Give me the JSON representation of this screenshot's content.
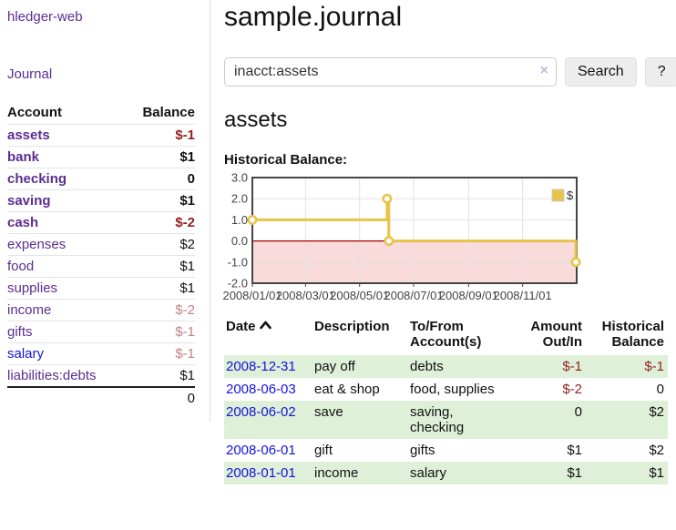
{
  "colors": {
    "purple_link": "#5c2d91",
    "blue_link": "#1414dd",
    "negative_strong": "#941f1f",
    "negative_muted": "#c08381",
    "row_green": "#dff0d8",
    "chart_line": "#e8c34a",
    "chart_negative_fill": "#f9dbdb",
    "chart_zero_line": "#a40000",
    "chart_grid": "#e2e2e2",
    "chart_border": "#454545"
  },
  "brand": "hledger-web",
  "sidebar": {
    "journal_link": "Journal",
    "account_header": "Account",
    "balance_header": "Balance",
    "accounts": [
      {
        "name": "assets",
        "level": 1,
        "bold": true,
        "balance": "$-1",
        "neg": "strong",
        "blue": false
      },
      {
        "name": "bank",
        "level": 2,
        "bold": true,
        "balance": "$1",
        "neg": "",
        "blue": false
      },
      {
        "name": "checking",
        "level": 3,
        "bold": true,
        "balance": "0",
        "neg": "",
        "blue": false
      },
      {
        "name": "saving",
        "level": 3,
        "bold": true,
        "balance": "$1",
        "neg": "",
        "blue": false
      },
      {
        "name": "cash",
        "level": 2,
        "bold": true,
        "balance": "$-2",
        "neg": "strong",
        "blue": false
      },
      {
        "name": "expenses",
        "level": 1,
        "bold": false,
        "balance": "$2",
        "neg": "",
        "blue": false
      },
      {
        "name": "food",
        "level": 2,
        "bold": false,
        "balance": "$1",
        "neg": "",
        "blue": false
      },
      {
        "name": "supplies",
        "level": 2,
        "bold": false,
        "balance": "$1",
        "neg": "",
        "blue": false
      },
      {
        "name": "income",
        "level": 1,
        "bold": false,
        "balance": "$-2",
        "neg": "muted",
        "blue": false
      },
      {
        "name": "gifts",
        "level": 2,
        "bold": false,
        "balance": "$-1",
        "neg": "muted",
        "blue": false
      },
      {
        "name": "salary",
        "level": 2,
        "bold": false,
        "balance": "$-1",
        "neg": "muted",
        "blue": true
      },
      {
        "name": "liabilities:debts",
        "level": 1,
        "bold": false,
        "balance": "$1",
        "neg": "",
        "blue": false
      }
    ],
    "total": "0"
  },
  "main": {
    "title": "sample.journal",
    "search": {
      "value": "inacct:assets",
      "clear": "×",
      "button_label": "Search",
      "help_label": "?"
    },
    "account_heading": "assets",
    "chart_title": "Historical Balance:"
  },
  "register": {
    "headers": {
      "date": "Date",
      "description": "Description",
      "accounts_1": "To/From",
      "accounts_2": "Account(s)",
      "amount_1": "Amount",
      "amount_2": "Out/In",
      "balance_1": "Historical",
      "balance_2": "Balance"
    },
    "rows": [
      {
        "date": "2008-12-31",
        "description": "pay off",
        "accounts": [
          "debts"
        ],
        "amount": "$-1",
        "amount_neg": true,
        "balance": "$-1",
        "balance_neg": true,
        "green": true
      },
      {
        "date": "2008-06-03",
        "description": "eat & shop",
        "accounts": [
          "food, supplies"
        ],
        "amount": "$-2",
        "amount_neg": true,
        "balance": "0",
        "balance_neg": false,
        "green": false
      },
      {
        "date": "2008-06-02",
        "description": "save",
        "accounts": [
          "saving,",
          "checking"
        ],
        "amount": "0",
        "amount_neg": false,
        "balance": "$2",
        "balance_neg": false,
        "green": true
      },
      {
        "date": "2008-06-01",
        "description": "gift",
        "accounts": [
          "gifts"
        ],
        "amount": "$1",
        "amount_neg": false,
        "balance": "$2",
        "balance_neg": false,
        "green": false
      },
      {
        "date": "2008-01-01",
        "description": "income",
        "accounts": [
          "salary"
        ],
        "amount": "$1",
        "amount_neg": false,
        "balance": "$1",
        "balance_neg": false,
        "green": true
      }
    ]
  },
  "chart_data": {
    "type": "line",
    "step": true,
    "title": "Historical Balance",
    "legend": [
      {
        "label": "$",
        "color": "#e8c34a"
      }
    ],
    "legend_position": "top-right",
    "grid": true,
    "negative_region_shaded": true,
    "x_range": [
      "2008-01-01",
      "2009-01-01"
    ],
    "ylim": [
      -2,
      3
    ],
    "y_ticks": [
      3.0,
      2.0,
      1.0,
      0.0,
      -1.0,
      -2.0
    ],
    "x_ticks": [
      {
        "date": "2008-01-01",
        "label": "2008/01/01"
      },
      {
        "date": "2008-03-01",
        "label": "2008/03/01"
      },
      {
        "date": "2008-05-01",
        "label": "2008/05/01"
      },
      {
        "date": "2008-07-01",
        "label": "2008/07/01"
      },
      {
        "date": "2008-09-01",
        "label": "2008/09/01"
      },
      {
        "date": "2008-11-01",
        "label": "2008/11/01"
      }
    ],
    "series": [
      {
        "name": "$",
        "points": [
          [
            "2008-01-01",
            1
          ],
          [
            "2008-06-01",
            2
          ],
          [
            "2008-06-03",
            0
          ],
          [
            "2008-12-31",
            -1
          ]
        ]
      }
    ]
  }
}
